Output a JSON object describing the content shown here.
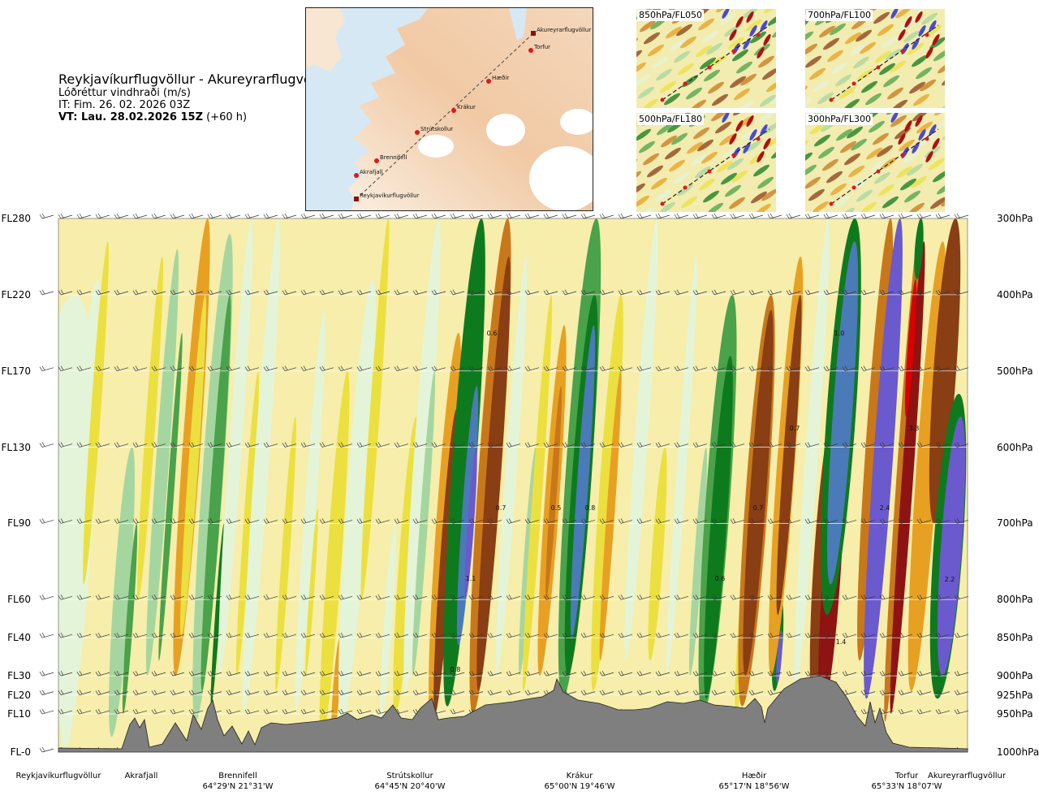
{
  "header": {
    "route": "Reykjavíkurflugvöllur - Akureyrarflugvöllur",
    "variable": "Lóðréttur vindhraði (m/s)",
    "issue_time": "IT: Fim. 26. 02. 2026 03Z",
    "valid_prefix": "VT: Lau. 28.02.2026 15Z",
    "valid_suffix": " (+60 h)"
  },
  "route_map": {
    "points": [
      {
        "name": "Akureyrarflugvöllur"
      },
      {
        "name": "Torfur"
      },
      {
        "name": "Hæðir"
      },
      {
        "name": "Krákur"
      },
      {
        "name": "Strútskollur"
      },
      {
        "name": "Brennifell"
      },
      {
        "name": "Akrafjall"
      },
      {
        "name": "Reykjavíkurflugvöllur"
      }
    ],
    "colors": {
      "sea": "#d7e8f5",
      "land_low": "#f6e6d2",
      "land_high": "#eab48a",
      "glacier": "#ffffff",
      "route": "#d01010"
    }
  },
  "level_maps": [
    {
      "label": "850hPa/FL050"
    },
    {
      "label": "700hPa/FL100"
    },
    {
      "label": "500hPa/FL180"
    },
    {
      "label": "300hPa/FL300"
    }
  ],
  "chart_data": {
    "type": "heatmap",
    "title": "Lóðréttur vindhraði (m/s)",
    "y_left_labels": [
      "FL280",
      "FL220",
      "FL170",
      "FL130",
      "FL90",
      "FL60",
      "FL40",
      "FL30",
      "FL20",
      "FL10",
      "FL-0"
    ],
    "y_right_labels": [
      "300hPa",
      "400hPa",
      "500hPa",
      "600hPa",
      "700hPa",
      "800hPa",
      "850hPa",
      "900hPa",
      "925hPa",
      "950hPa",
      "1000hPa"
    ],
    "pressure_levels_hpa": [
      300,
      400,
      500,
      600,
      700,
      800,
      850,
      900,
      925,
      950,
      1000
    ],
    "x_waypoints": [
      {
        "name": "Reykjavíkurflugvöllur",
        "coord": ""
      },
      {
        "name": "Akrafjall",
        "coord": ""
      },
      {
        "name": "Brennifell",
        "coord": "64°29'N 21°31'W"
      },
      {
        "name": "Strútskollur",
        "coord": "64°45'N 20°40'W"
      },
      {
        "name": "Krákur",
        "coord": "65°00'N 19°46'W"
      },
      {
        "name": "Hæðir",
        "coord": "65°17'N 18°56'W"
      },
      {
        "name": "Torfur",
        "coord": "65°33'N 18°07'W"
      },
      {
        "name": "Akureyrarflugvöllur",
        "coord": ""
      }
    ],
    "contour_labels": [
      "0.6",
      "1.0",
      "0.7",
      "3.3",
      "0.7",
      "0.5",
      "0.8",
      "0.7",
      "2.4",
      "1.1",
      "0.6",
      "2.2",
      "1.4",
      "0.8"
    ],
    "color_scale": {
      "strong_up": "#6a5acd",
      "up_3": "#4a7ab8",
      "up_2": "#0e7a1e",
      "up_1": "#4aa24a",
      "weak_up": "#a6d6a0",
      "near_zero_up": "#e4f4d8",
      "near_zero": "#f6eeaa",
      "weak_down": "#ece040",
      "down_1": "#e8a022",
      "down_2": "#c8781a",
      "down_3": "#8a3e14",
      "strong_down": "#8e1414",
      "extreme_down": "#d80000",
      "terrain": "#7f7f7f"
    }
  }
}
